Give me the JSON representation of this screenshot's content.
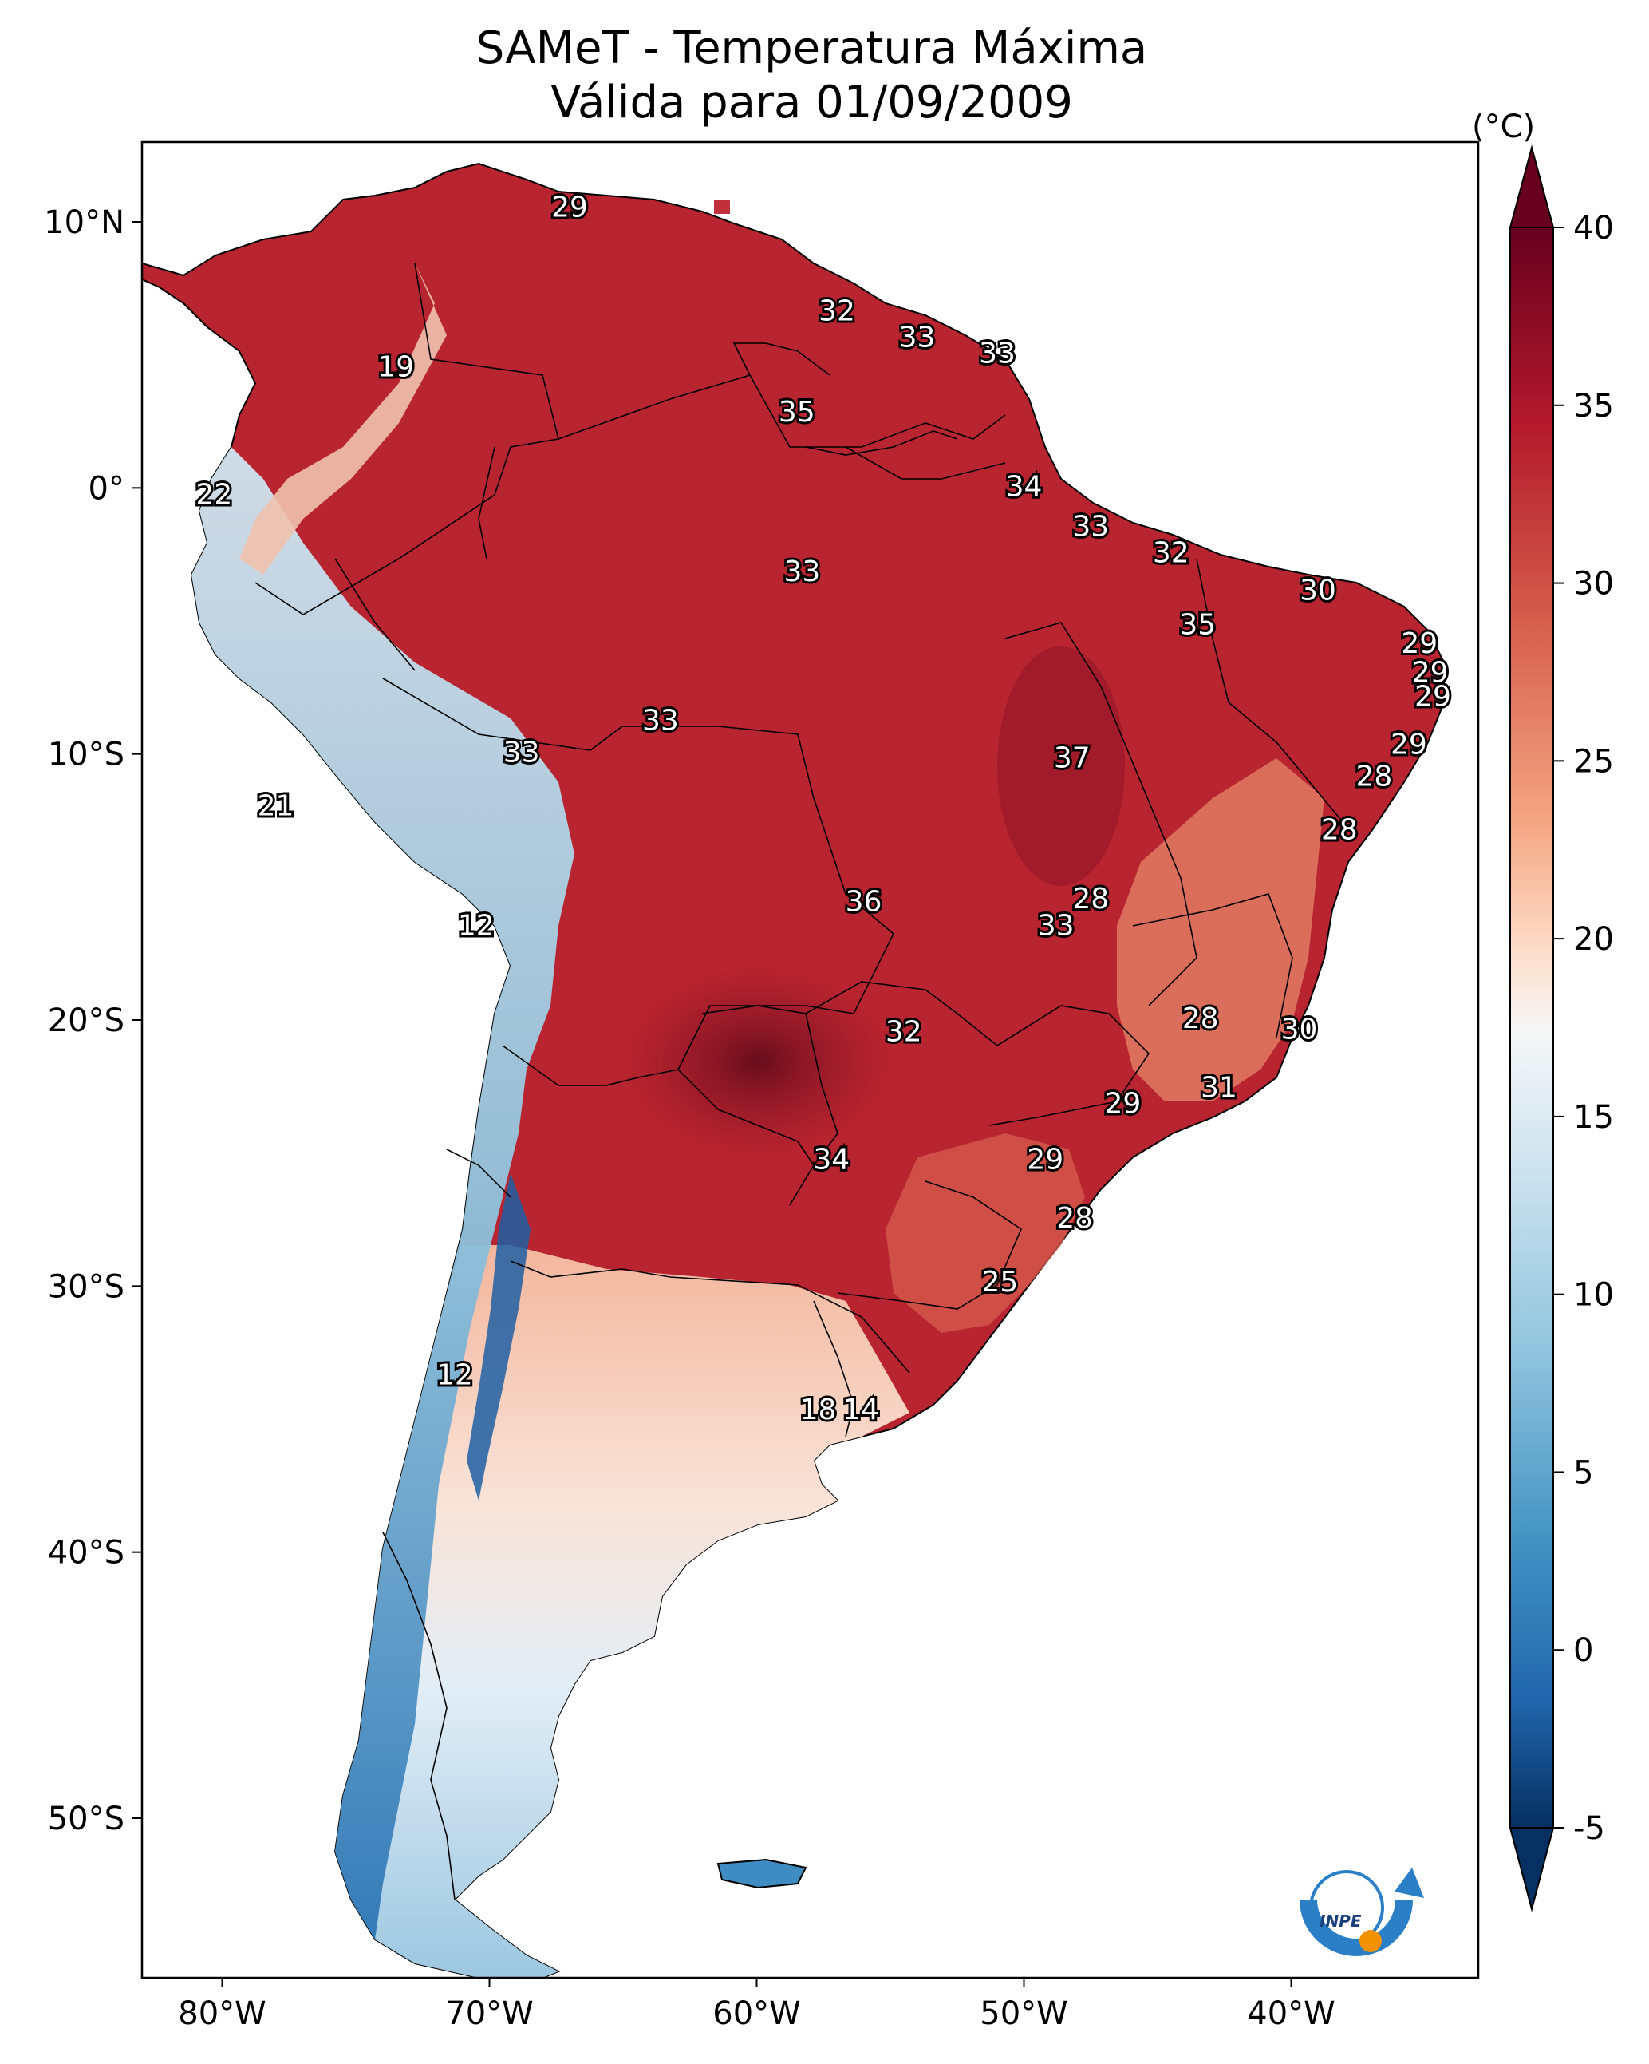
{
  "title": "SAMeT - Temperatura Máxima",
  "subtitle": "Válida para 01/09/2009",
  "colorbar": {
    "unit": "(°C)",
    "ticks": [
      "40",
      "35",
      "30",
      "25",
      "20",
      "15",
      "10",
      "5",
      "0",
      "-5"
    ],
    "range": [
      -5,
      40
    ]
  },
  "axes": {
    "lon_ticks": [
      "80°W",
      "70°W",
      "60°W",
      "50°W",
      "40°W"
    ],
    "lat_ticks": [
      "10°N",
      "0°",
      "10°S",
      "20°S",
      "30°S",
      "40°S",
      "50°S"
    ],
    "extent": {
      "lon": [
        -83,
        -33
      ],
      "lat": [
        -56,
        13
      ]
    }
  },
  "logo_text": "INPE",
  "map_data": {
    "type": "heatmap",
    "variable": "Temperatura Máxima",
    "units": "°C",
    "labels": [
      {
        "lon": -67,
        "lat": 10.5,
        "value": "29"
      },
      {
        "lon": -57,
        "lat": 6.6,
        "value": "32"
      },
      {
        "lon": -54,
        "lat": 5.6,
        "value": "33"
      },
      {
        "lon": -51,
        "lat": 5,
        "value": "33"
      },
      {
        "lon": -73.5,
        "lat": 4.5,
        "value": "19"
      },
      {
        "lon": -58.5,
        "lat": 2.8,
        "value": "35"
      },
      {
        "lon": -50,
        "lat": 0,
        "value": "34"
      },
      {
        "lon": -80.3,
        "lat": -0.3,
        "value": "22"
      },
      {
        "lon": -47.5,
        "lat": -1.5,
        "value": "33"
      },
      {
        "lon": -44.5,
        "lat": -2.5,
        "value": "32"
      },
      {
        "lon": -58.3,
        "lat": -3.2,
        "value": "33"
      },
      {
        "lon": -39,
        "lat": -3.9,
        "value": "30"
      },
      {
        "lon": -43.5,
        "lat": -5.2,
        "value": "35"
      },
      {
        "lon": -35.2,
        "lat": -5.9,
        "value": "29"
      },
      {
        "lon": -34.8,
        "lat": -7,
        "value": "29"
      },
      {
        "lon": -34.7,
        "lat": -7.9,
        "value": "29"
      },
      {
        "lon": -63.6,
        "lat": -8.8,
        "value": "33"
      },
      {
        "lon": -68.8,
        "lat": -10,
        "value": "33"
      },
      {
        "lon": -48.2,
        "lat": -10.2,
        "value": "37"
      },
      {
        "lon": -35.6,
        "lat": -9.7,
        "value": "29"
      },
      {
        "lon": -36.9,
        "lat": -10.9,
        "value": "28"
      },
      {
        "lon": -78,
        "lat": -12,
        "value": "21"
      },
      {
        "lon": -38.2,
        "lat": -12.9,
        "value": "28"
      },
      {
        "lon": -56,
        "lat": -15.6,
        "value": "36"
      },
      {
        "lon": -47.5,
        "lat": -15.5,
        "value": "28"
      },
      {
        "lon": -48.8,
        "lat": -16.5,
        "value": "33"
      },
      {
        "lon": -70.5,
        "lat": -16.5,
        "value": "12"
      },
      {
        "lon": -54.5,
        "lat": -20.5,
        "value": "32"
      },
      {
        "lon": -43.4,
        "lat": -20,
        "value": "28"
      },
      {
        "lon": -39.7,
        "lat": -20.4,
        "value": "30"
      },
      {
        "lon": -42.7,
        "lat": -22.6,
        "value": "31"
      },
      {
        "lon": -46.3,
        "lat": -23.2,
        "value": "29"
      },
      {
        "lon": -57.2,
        "lat": -25.3,
        "value": "34"
      },
      {
        "lon": -49.2,
        "lat": -25.3,
        "value": "29"
      },
      {
        "lon": -48.1,
        "lat": -27.5,
        "value": "28"
      },
      {
        "lon": -50.9,
        "lat": -29.9,
        "value": "25"
      },
      {
        "lon": -71.3,
        "lat": -33.4,
        "value": "12"
      },
      {
        "lon": -57.7,
        "lat": -34.7,
        "value": "18"
      },
      {
        "lon": -56.1,
        "lat": -34.7,
        "value": "14"
      }
    ]
  }
}
